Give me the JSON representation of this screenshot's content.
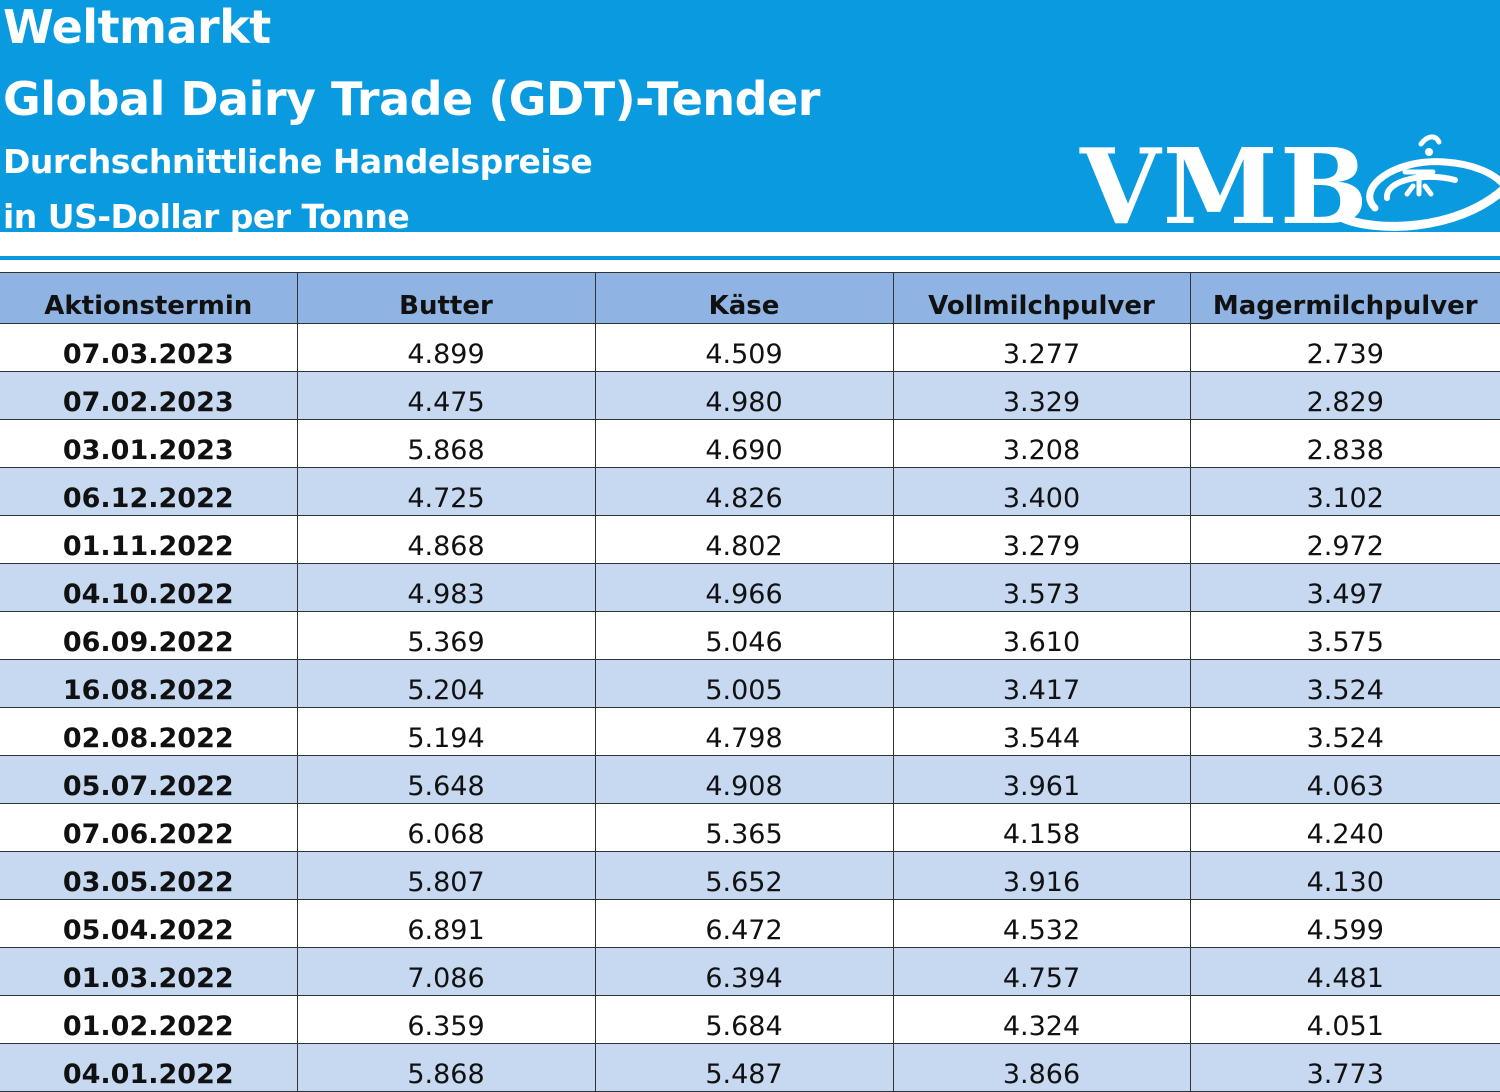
{
  "header": {
    "line1": "Weltmarkt",
    "line2": "Global Dairy Trade (GDT)-Tender",
    "line3": "Durchschnittliche Handelspreise",
    "line4": "in US-Dollar per Tonne",
    "logo_text": "VMB",
    "background_color": "#0a9ae0"
  },
  "table": {
    "columns": [
      "Aktionstermin",
      "Butter",
      "Käse",
      "Vollmilchpulver",
      "Magermilchpulver"
    ],
    "rows": [
      [
        "07.03.2023",
        "4.899",
        "4.509",
        "3.277",
        "2.739"
      ],
      [
        "07.02.2023",
        "4.475",
        "4.980",
        "3.329",
        "2.829"
      ],
      [
        "03.01.2023",
        "5.868",
        "4.690",
        "3.208",
        "2.838"
      ],
      [
        "06.12.2022",
        "4.725",
        "4.826",
        "3.400",
        "3.102"
      ],
      [
        "01.11.2022",
        "4.868",
        "4.802",
        "3.279",
        "2.972"
      ],
      [
        "04.10.2022",
        "4.983",
        "4.966",
        "3.573",
        "3.497"
      ],
      [
        "06.09.2022",
        "5.369",
        "5.046",
        "3.610",
        "3.575"
      ],
      [
        "16.08.2022",
        "5.204",
        "5.005",
        "3.417",
        "3.524"
      ],
      [
        "02.08.2022",
        "5.194",
        "4.798",
        "3.544",
        "3.524"
      ],
      [
        "05.07.2022",
        "5.648",
        "4.908",
        "3.961",
        "4.063"
      ],
      [
        "07.06.2022",
        "6.068",
        "5.365",
        "4.158",
        "4.240"
      ],
      [
        "03.05.2022",
        "5.807",
        "5.652",
        "3.916",
        "4.130"
      ],
      [
        "05.04.2022",
        "6.891",
        "6.472",
        "4.532",
        "4.599"
      ],
      [
        "01.03.2022",
        "7.086",
        "6.394",
        "4.757",
        "4.481"
      ],
      [
        "01.02.2022",
        "6.359",
        "5.684",
        "4.324",
        "4.051"
      ],
      [
        "04.01.2022",
        "5.868",
        "5.487",
        "3.866",
        "3.773"
      ]
    ],
    "header_color": "#8fb4e3",
    "stripe_color": "#c6d9f1"
  }
}
